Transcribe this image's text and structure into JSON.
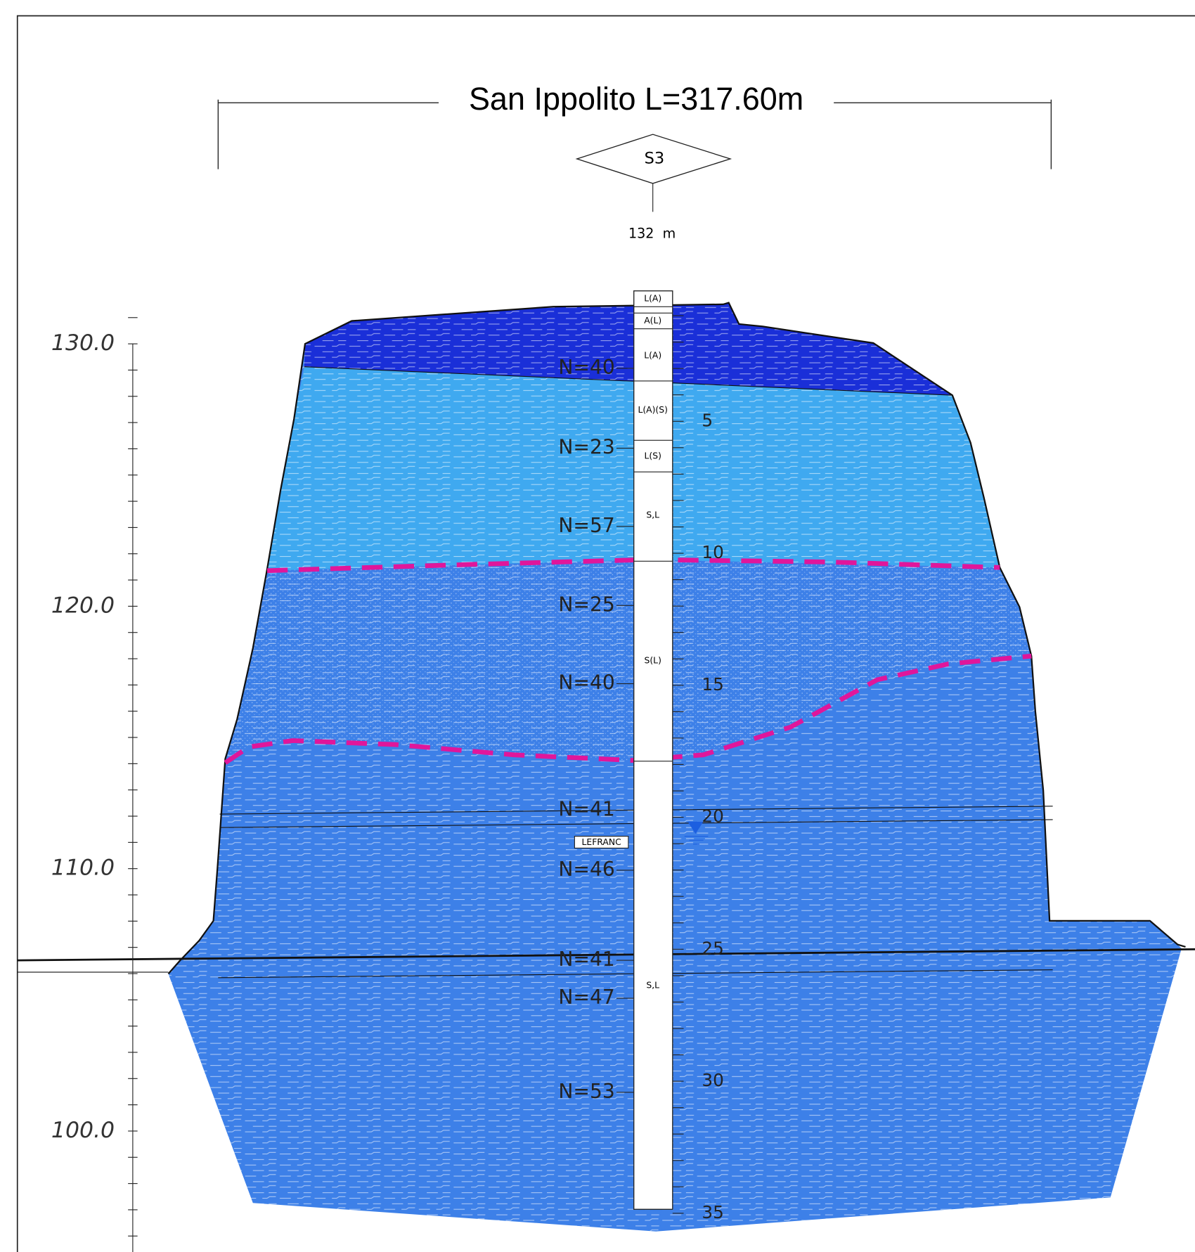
{
  "header": {
    "title": "San Ippolito L=317.60m"
  },
  "borehole": {
    "name": "S3",
    "distance": "132  m",
    "layers": [
      "L(A)",
      "A(L)",
      "L(A)",
      "L(A)(S)",
      "L(S)",
      "S,L",
      "S(L)",
      "S,L"
    ],
    "spt": [
      "N=40",
      "N=23",
      "N=57",
      "N=25",
      "N=40",
      "N=41",
      "N=46",
      "N=41",
      "N=47",
      "N=53"
    ],
    "test": "LEFRANC",
    "depth_labels": [
      "5",
      "10",
      "15",
      "20",
      "25",
      "30",
      "35"
    ]
  },
  "elevation_axis": {
    "labels": [
      "130.0",
      "120.0",
      "110.0",
      "100.0"
    ]
  }
}
